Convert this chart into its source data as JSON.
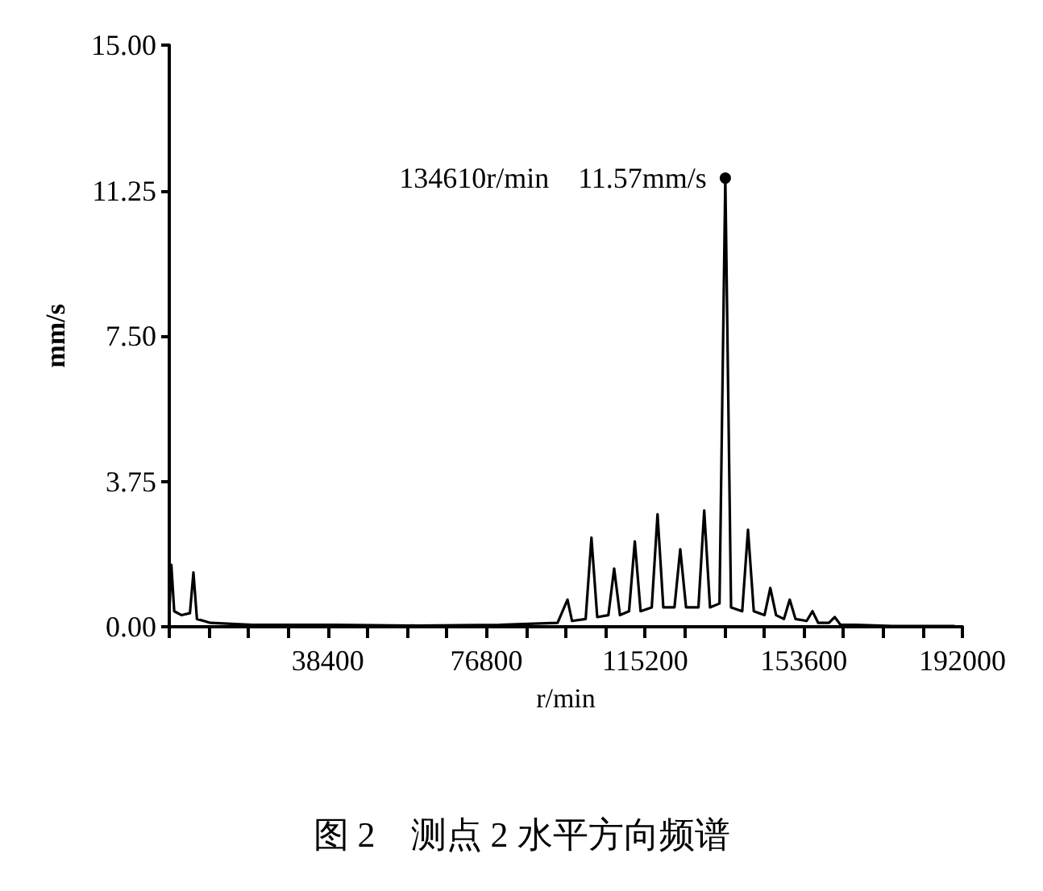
{
  "chart_data": {
    "type": "line",
    "xlabel": "r/min",
    "ylabel": "mm/s",
    "xlim": [
      0,
      192000
    ],
    "ylim": [
      0,
      15
    ],
    "xticks": [
      {
        "value": 0,
        "label": null
      },
      {
        "value": 9600,
        "label": null
      },
      {
        "value": 19200,
        "label": null
      },
      {
        "value": 28800,
        "label": null
      },
      38400,
      {
        "value": 48000,
        "label": null
      },
      {
        "value": 57600,
        "label": null
      },
      {
        "value": 67200,
        "label": null
      },
      76800,
      {
        "value": 86400,
        "label": null
      },
      {
        "value": 96000,
        "label": null
      },
      {
        "value": 105600,
        "label": null
      },
      115200,
      {
        "value": 124800,
        "label": null
      },
      {
        "value": 134400,
        "label": null
      },
      {
        "value": 144000,
        "label": null
      },
      153600,
      {
        "value": 163200,
        "label": null
      },
      {
        "value": 172800,
        "label": null
      },
      {
        "value": 182400,
        "label": null
      },
      192000
    ],
    "yticks": [
      {
        "value": 0,
        "label": "0.00"
      },
      {
        "value": 3.75,
        "label": "3.75"
      },
      {
        "value": 7.5,
        "label": "7.50"
      },
      {
        "value": 11.25,
        "label": "11.25"
      },
      {
        "value": 15,
        "label": "15.00"
      }
    ],
    "grid": false,
    "marker": "none",
    "line_style": "solid",
    "series": [
      {
        "color": "#000000",
        "x": [
          0,
          500,
          1200,
          3000,
          5000,
          5850,
          6700,
          10000,
          20000,
          40000,
          60000,
          80000,
          94000,
          96400,
          97500,
          100800,
          102200,
          103600,
          106300,
          107700,
          109100,
          111300,
          112700,
          114100,
          116800,
          118200,
          119600,
          122300,
          123700,
          125100,
          128100,
          129500,
          130900,
          133200,
          134610,
          136000,
          138700,
          140100,
          141500,
          144100,
          145500,
          146900,
          148800,
          150200,
          151600,
          154300,
          155700,
          157100,
          159700,
          161100,
          162500,
          166200,
          175000,
          190000
        ],
        "values": [
          0.3,
          1.6,
          0.4,
          0.3,
          0.35,
          1.4,
          0.2,
          0.1,
          0.05,
          0.05,
          0.03,
          0.05,
          0.1,
          0.7,
          0.15,
          0.2,
          2.3,
          0.25,
          0.3,
          1.5,
          0.3,
          0.4,
          2.2,
          0.4,
          0.5,
          2.9,
          0.5,
          0.5,
          2.0,
          0.5,
          0.5,
          3.0,
          0.5,
          0.6,
          11.57,
          0.5,
          0.4,
          2.5,
          0.4,
          0.3,
          1.0,
          0.3,
          0.2,
          0.7,
          0.2,
          0.15,
          0.4,
          0.1,
          0.1,
          0.25,
          0.05,
          0.05,
          0.02,
          0.02
        ]
      }
    ],
    "annotations": [
      {
        "text": "134610r/min　11.57mm/s",
        "x": 134610,
        "y": 11.57
      },
      "图 2　测点 2 水平方向频谱"
    ]
  }
}
